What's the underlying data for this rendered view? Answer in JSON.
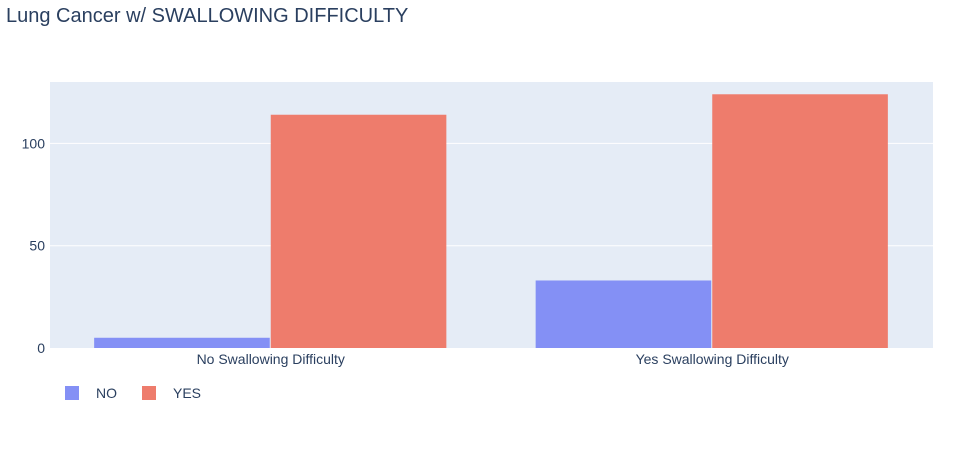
{
  "chart_data": {
    "type": "bar",
    "title": "Lung Cancer w/ SWALLOWING DIFFICULTY",
    "categories": [
      "No Swallowing Difficulty",
      "Yes Swallowing Difficulty"
    ],
    "series": [
      {
        "name": "NO",
        "values": [
          5,
          33
        ],
        "color": "#8490f5"
      },
      {
        "name": "YES",
        "values": [
          114,
          124
        ],
        "color": "#ee7c6c"
      }
    ],
    "ylim": [
      0,
      130
    ],
    "yticks": [
      0,
      50,
      100
    ],
    "xlabel": "",
    "ylabel": "",
    "grid": true,
    "legend_position": "bottom-left",
    "plot_background": "#e5ecf6"
  }
}
